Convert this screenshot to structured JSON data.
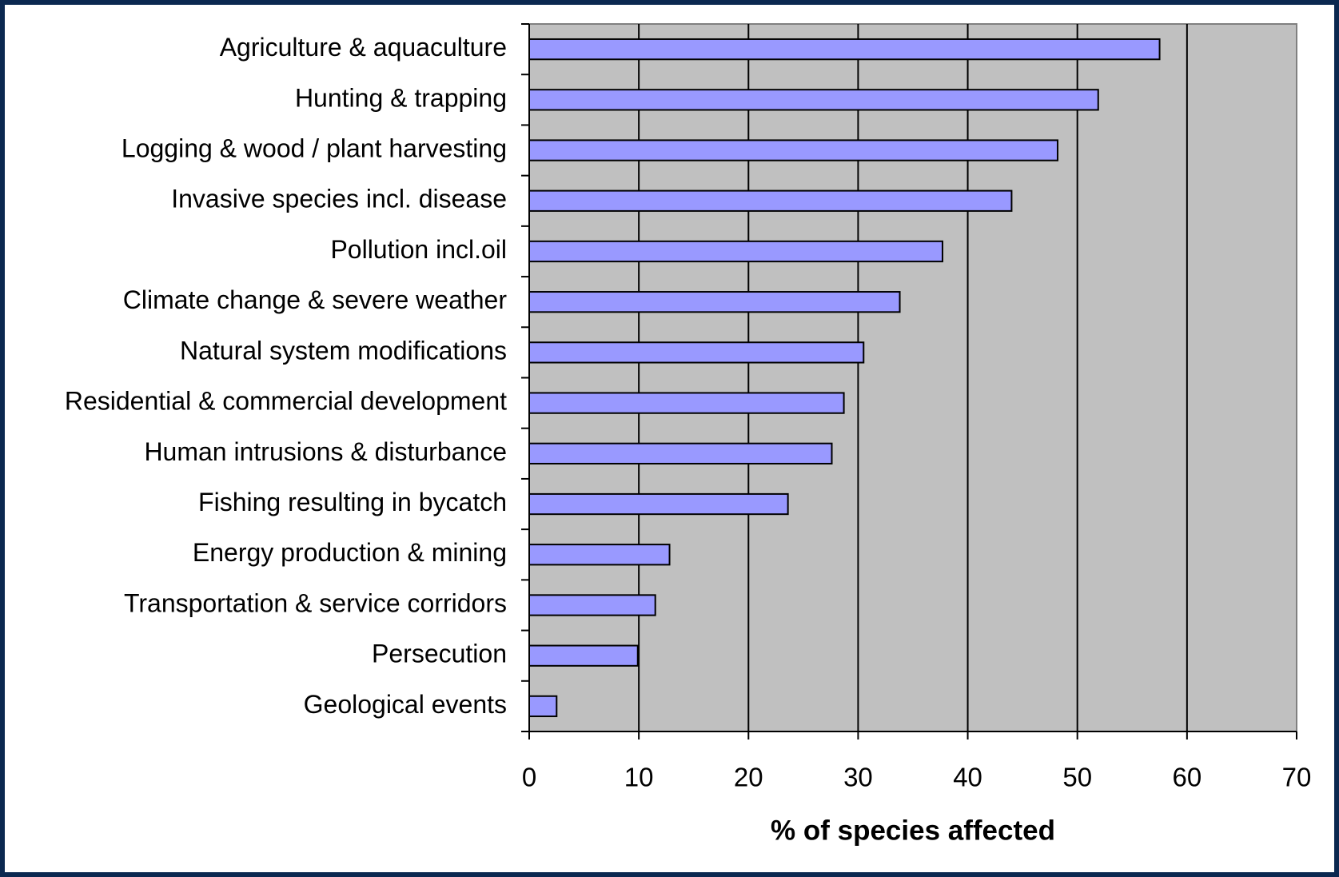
{
  "chart_data": {
    "type": "bar",
    "orientation": "horizontal",
    "x_label": "% of species affected",
    "categories": [
      "Agriculture & aquaculture",
      "Hunting & trapping",
      "Logging & wood / plant harvesting",
      "Invasive species incl. disease",
      "Pollution incl.oil",
      "Climate change & severe weather",
      "Natural system modifications",
      "Residential & commercial development",
      "Human intrusions & disturbance",
      "Fishing resulting in bycatch",
      "Energy production & mining",
      "Transportation & service corridors",
      "Persecution",
      "Geological events"
    ],
    "values": [
      57.5,
      51.9,
      48.2,
      44.0,
      37.7,
      33.8,
      30.5,
      28.7,
      27.6,
      23.6,
      12.8,
      11.5,
      9.9,
      2.5
    ],
    "color": "#9999ff",
    "xlim": [
      0,
      70
    ],
    "xticks": [
      0,
      10,
      20,
      30,
      40,
      50,
      60,
      70
    ],
    "grid": true
  }
}
